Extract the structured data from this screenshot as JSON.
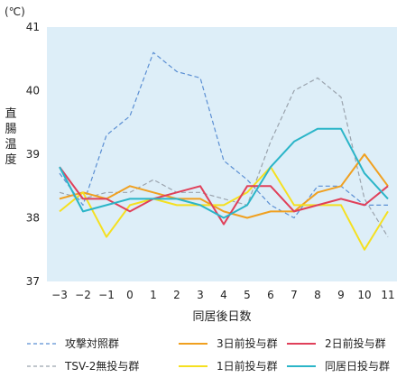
{
  "chart_data": {
    "type": "line",
    "unit_label": "(℃)",
    "ylabel": "直腸温度",
    "xlabel": "同居後日数",
    "ylim": [
      37,
      41
    ],
    "yticks": [
      37,
      38,
      39,
      40,
      41
    ],
    "x": [
      -3,
      -2,
      -1,
      0,
      1,
      2,
      3,
      4,
      5,
      6,
      7,
      8,
      9,
      10,
      11
    ],
    "x_tick_labels": [
      "−3",
      "−2",
      "−1",
      "0",
      "1",
      "2",
      "3",
      "4",
      "5",
      "6",
      "7",
      "8",
      "9",
      "10",
      "11"
    ],
    "plot_background": "#ddeef8",
    "grid": false,
    "legend_position": "bottom",
    "series": [
      {
        "name": "攻撃対照群",
        "color": "#5b8fd3",
        "dashed": true,
        "values": [
          38.7,
          38.2,
          39.3,
          39.6,
          40.6,
          40.3,
          40.2,
          38.9,
          38.6,
          38.2,
          38.0,
          38.5,
          38.5,
          38.2,
          38.2
        ]
      },
      {
        "name": "TSV-2無投与群",
        "color": "#9aa3ad",
        "dashed": true,
        "values": [
          38.4,
          38.3,
          38.4,
          38.4,
          38.6,
          38.4,
          38.4,
          38.3,
          38.2,
          39.2,
          40.0,
          40.2,
          39.9,
          38.3,
          37.7
        ]
      },
      {
        "name": "3日前投与群",
        "color": "#f0a020",
        "dashed": false,
        "values": [
          38.3,
          38.4,
          38.3,
          38.5,
          38.4,
          38.3,
          38.3,
          38.1,
          38.0,
          38.1,
          38.1,
          38.4,
          38.5,
          39.0,
          38.5
        ]
      },
      {
        "name": "1日前投与群",
        "color": "#f5e020",
        "dashed": false,
        "values": [
          38.1,
          38.4,
          37.7,
          38.2,
          38.3,
          38.2,
          38.2,
          38.2,
          38.4,
          38.8,
          38.2,
          38.2,
          38.2,
          37.5,
          38.1
        ]
      },
      {
        "name": "2日前投与群",
        "color": "#e0405a",
        "dashed": false,
        "values": [
          38.8,
          38.3,
          38.3,
          38.1,
          38.3,
          38.4,
          38.5,
          37.9,
          38.5,
          38.5,
          38.1,
          38.2,
          38.3,
          38.2,
          38.5
        ]
      },
      {
        "name": "同居日投与群",
        "color": "#2bb5c8",
        "dashed": false,
        "values": [
          38.8,
          38.1,
          38.2,
          38.3,
          38.3,
          38.3,
          38.2,
          38.0,
          38.2,
          38.8,
          39.2,
          39.4,
          39.4,
          38.7,
          38.3
        ]
      }
    ]
  }
}
